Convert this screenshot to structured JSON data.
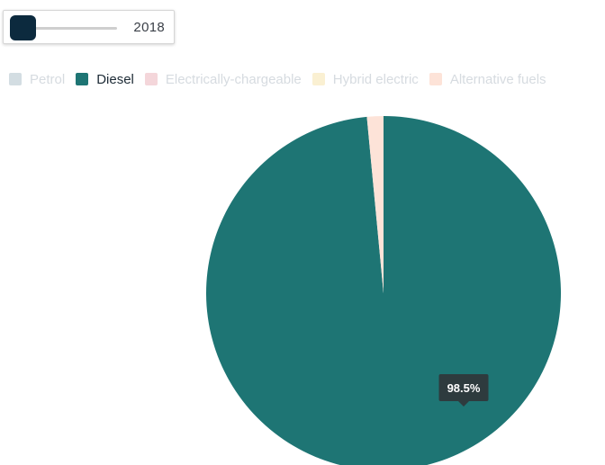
{
  "slider": {
    "year": "2018"
  },
  "legend": {
    "items": [
      {
        "label": "Petrol",
        "color": "#d3dde2",
        "active": false
      },
      {
        "label": "Diesel",
        "color": "#1e7574",
        "active": true
      },
      {
        "label": "Electrically-chargeable",
        "color": "#f4d6da",
        "active": false
      },
      {
        "label": "Hybrid electric",
        "color": "#faf0d2",
        "active": false
      },
      {
        "label": "Alternative fuels",
        "color": "#fde3d8",
        "active": false
      }
    ]
  },
  "chart_data": {
    "type": "pie",
    "title": "",
    "categories": [
      "Diesel",
      "Alternative fuels"
    ],
    "values": [
      98.5,
      1.5
    ],
    "unit": "%",
    "colors": [
      "#1e7574",
      "#fde3d8"
    ],
    "tooltip": {
      "label": "98.5%",
      "background": "#2e3b3e"
    },
    "legend_placement": "top-left"
  }
}
